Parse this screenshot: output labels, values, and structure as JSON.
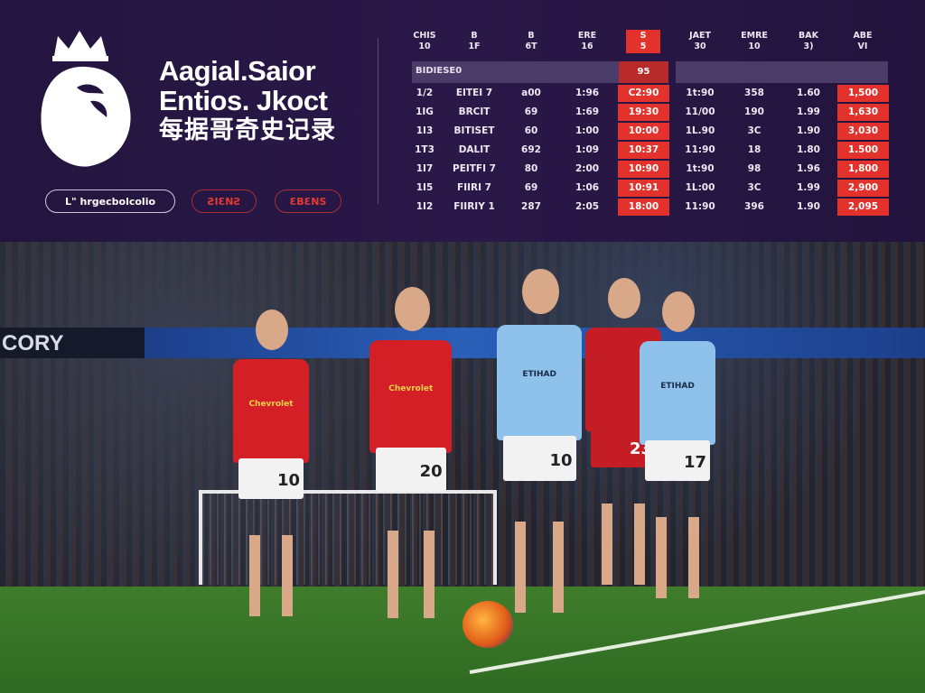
{
  "header": {
    "title_line1": "Aagial.Saior",
    "title_line2": "Entios. Jkoct",
    "title_line3": "每据哥奇史记录",
    "buttons": [
      "L\" hrgecbolcolio",
      "ƧIƐNƧ",
      "ƐBƐNS"
    ]
  },
  "table": {
    "columns": [
      [
        "CHIS",
        "10"
      ],
      [
        "B",
        "1F"
      ],
      [
        "B",
        "6T"
      ],
      [
        "ERE",
        "16"
      ],
      [
        "S",
        "5"
      ],
      [
        "JAET",
        "30"
      ],
      [
        "EMRE",
        "10"
      ],
      [
        "BAK",
        "3)"
      ],
      [
        "ABE",
        "VI"
      ]
    ],
    "highlight_columns": [
      4,
      8
    ],
    "section_label": "BIDIESE0",
    "section_value": "95",
    "rows": [
      [
        "1/2",
        "EITEI 7",
        "a00",
        "1:96",
        "C2:90",
        "1t:90",
        "358",
        "1.60",
        "1,500"
      ],
      [
        "1IG",
        "BRCIT",
        "69",
        "1:69",
        "19:30",
        "11/00",
        "190",
        "1.99",
        "1,630"
      ],
      [
        "1I3",
        "BITISET",
        "60",
        "1:00",
        "10:00",
        "1L.90",
        "3C",
        "1.90",
        "3,030"
      ],
      [
        "1T3",
        "DALIT",
        "692",
        "1:09",
        "10:37",
        "11:90",
        "18",
        "1.80",
        "1.500"
      ],
      [
        "1I7",
        "PEITFI 7",
        "80",
        "2:00",
        "10:90",
        "1t:90",
        "98",
        "1.96",
        "1,800"
      ],
      [
        "1I5",
        "FIIRI 7",
        "69",
        "1:06",
        "10:91",
        "1L:00",
        "3C",
        "1.99",
        "2,900"
      ],
      [
        "1I2",
        "FIIRIY 1",
        "287",
        "2:05",
        "18:00",
        "11:90",
        "396",
        "1.90",
        "2,095"
      ]
    ]
  },
  "photo": {
    "board_text": "CORY",
    "players": [
      {
        "number": "10",
        "sponsor": "Chevrolet",
        "kit": "#d51f26"
      },
      {
        "number": "20",
        "sponsor": "Chevrolet",
        "kit": "#d51f26"
      },
      {
        "number": "10",
        "sponsor": "ETIHAD",
        "kit": "#8fc2ea"
      },
      {
        "number": "23",
        "sponsor": "",
        "kit": "#c41d25"
      },
      {
        "number": "17",
        "sponsor": "ETIHAD",
        "kit": "#8fc2ea"
      }
    ]
  },
  "colors": {
    "panel": "#23153f",
    "accent_red": "#e3322c",
    "sub_bar": "#4b3b68"
  }
}
